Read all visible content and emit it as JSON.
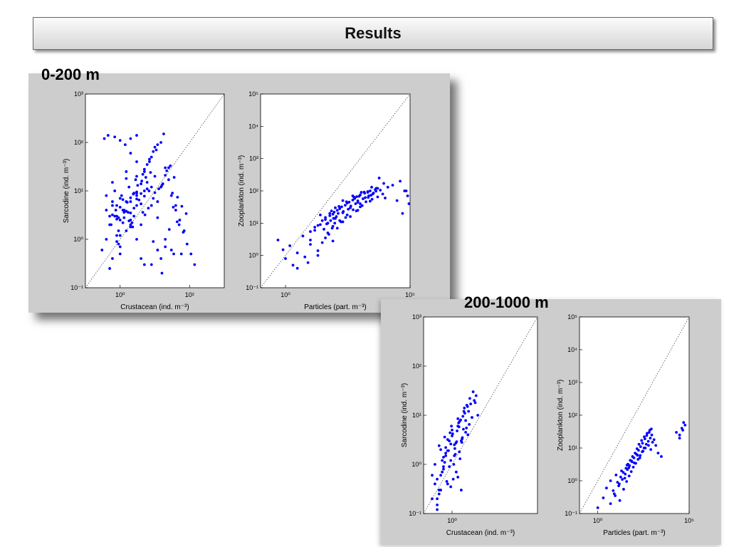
{
  "title": "Results",
  "panels": [
    {
      "label": "0-200 m"
    },
    {
      "label": "200-1000 m"
    }
  ],
  "colors": {
    "points": "#0000ff",
    "reference_line": "#333333"
  },
  "chart_data": [
    {
      "type": "scatter",
      "panel": "0-200 m",
      "xlabel": "Crustacean (ind. m⁻³)",
      "ylabel": "Sarcodine (ind. m⁻³)",
      "xscale": "log",
      "yscale": "log",
      "xlim": [
        0.1,
        1000
      ],
      "ylim": [
        0.1,
        1000
      ],
      "xticks": [
        {
          "v": 1,
          "label": "10⁰"
        },
        {
          "v": 100,
          "label": "10²"
        }
      ],
      "yticks": [
        {
          "v": 0.1,
          "label": "10⁻¹"
        },
        {
          "v": 1,
          "label": "10⁰"
        },
        {
          "v": 10,
          "label": "10¹"
        },
        {
          "v": 100,
          "label": "10²"
        },
        {
          "v": 1000,
          "label": "10³"
        }
      ],
      "reference_line": "y=x",
      "marker_color": "#0000ff",
      "grid": false,
      "x": [
        0.3,
        0.4,
        0.5,
        0.6,
        0.7,
        0.8,
        0.9,
        1.0,
        1.2,
        1.5,
        2.0,
        2.5,
        3.0,
        4.0,
        5.0,
        6.0,
        8.0,
        10,
        15,
        20,
        30,
        40,
        50,
        70,
        0.4,
        0.6,
        0.8,
        1.0,
        1.5,
        2.0,
        3.0,
        5.0,
        8.0,
        12,
        20,
        30,
        0.5,
        0.7,
        1.0,
        1.5,
        2.0,
        3.0,
        5.0,
        8.0,
        15,
        25,
        0.9,
        1.3,
        2.5,
        4.0,
        6.0,
        10,
        18,
        35,
        0.5,
        0.8,
        1.2,
        2.0,
        3.5,
        6.0,
        1.0,
        2.0,
        4.0,
        8.0,
        16,
        3.0,
        5.0,
        7.0,
        9.0,
        12,
        0.6,
        1.1,
        1.8,
        2.8,
        4.5,
        7.0,
        11,
        0.8,
        1.5,
        3.0,
        0.7,
        1.0,
        1.4,
        2.0,
        3.0,
        0.4,
        0.6,
        0.9,
        1.5,
        2.2,
        0.6,
        0.8,
        1.0,
        1.3,
        1.6,
        2.0,
        2.5,
        3.0,
        4.0,
        5.0,
        1.2,
        1.8,
        2.4,
        3.2,
        4.2,
        5.5,
        7.5,
        10,
        13,
        17,
        22,
        28,
        36,
        45,
        60,
        80,
        2.0,
        3.0,
        4.5,
        6.5,
        9.0,
        12,
        16,
        20,
        25,
        32,
        40,
        52,
        66,
        85,
        110,
        140,
        0.35,
        0.45,
        0.55,
        0.75,
        1.0,
        1.3,
        1.7,
        2.3,
        3.0,
        4.0,
        5.2,
        6.8,
        9.0,
        12,
        15,
        20,
        26,
        34,
        44,
        58
      ],
      "y": [
        0.6,
        1.0,
        2.0,
        0.4,
        3.0,
        5.0,
        0.8,
        2.5,
        4.0,
        1.5,
        6.0,
        3.0,
        8.0,
        2.0,
        10,
        15,
        5.0,
        20,
        12,
        30,
        8.0,
        4.0,
        2.0,
        1.5,
        8.0,
        15,
        1.2,
        0.5,
        25,
        60,
        40,
        0.3,
        12,
        6.0,
        1.0,
        0.6,
        3.0,
        10,
        7.0,
        18,
        2.5,
        5.0,
        25,
        50,
        100,
        30,
        1.5,
        4.0,
        9.0,
        14,
        35,
        80,
        150,
        0.5,
        0.25,
        0.9,
        2.2,
        3.5,
        6.5,
        11,
        0.7,
        1.8,
        0.4,
        0.3,
        0.2,
        20,
        28,
        45,
        65,
        90,
        6.0,
        8.0,
        12,
        17,
        22,
        40,
        70,
        3.0,
        6.0,
        9.0,
        130,
        110,
        90,
        120,
        140,
        4.0,
        5.0,
        2.8,
        3.8,
        2.2,
        3.2,
        2.6,
        4.6,
        3.6,
        5.8,
        7.2,
        4.4,
        9.5,
        5.4,
        7.8,
        6.6,
        2.4,
        8.6,
        13,
        16,
        19,
        24,
        9.2,
        11,
        14,
        26,
        33,
        19,
        7.4,
        4.8,
        3.4,
        2.0,
        1.0,
        3.6,
        4.4,
        7.0,
        2.8,
        13,
        21,
        17,
        9.0,
        5.0,
        2.5,
        1.4,
        0.8,
        0.5,
        0.3,
        120,
        140,
        2.0,
        4.0,
        1.2,
        2.8,
        3.6,
        1.8,
        6.8,
        8.8,
        3.2,
        10,
        0.9,
        0.6,
        0.4,
        0.7,
        1.6,
        4.6,
        2.3,
        0.5
      ]
    },
    {
      "type": "scatter",
      "panel": "0-200 m",
      "xlabel": "Particles (part. m⁻³)",
      "ylabel": "Zooplankton (ind. m⁻³)",
      "xscale": "log",
      "yscale": "log",
      "xlim": [
        0.1,
        100000
      ],
      "ylim": [
        0.1,
        100000
      ],
      "xticks": [
        {
          "v": 1,
          "label": "10⁰"
        },
        {
          "v": 100000,
          "label": "10⁵"
        }
      ],
      "yticks": [
        {
          "v": 0.1,
          "label": "10⁻¹"
        },
        {
          "v": 1,
          "label": "10⁰"
        },
        {
          "v": 10,
          "label": "10¹"
        },
        {
          "v": 100,
          "label": "10²"
        },
        {
          "v": 1000,
          "label": "10³"
        },
        {
          "v": 10000,
          "label": "10⁴"
        },
        {
          "v": 100000,
          "label": "10⁵"
        }
      ],
      "reference_line": "y=x",
      "marker_color": "#0000ff",
      "grid": false,
      "x": [
        0.5,
        0.8,
        1.0,
        1.5,
        2.0,
        3.0,
        5.0,
        8.0,
        10,
        15,
        20,
        25,
        30,
        40,
        50,
        60,
        80,
        100,
        150,
        200,
        300,
        500,
        800,
        1000,
        2000,
        3000,
        5000,
        8000,
        10000,
        20000,
        40000,
        60000,
        3.0,
        6.0,
        10,
        20,
        40,
        80,
        120,
        200,
        400,
        700,
        1200,
        2500,
        5000,
        10,
        20,
        40,
        80,
        150,
        300,
        600,
        1000,
        2000,
        4000,
        15,
        30,
        60,
        120,
        250,
        500,
        900,
        1500,
        2500,
        50,
        100,
        200,
        400,
        800,
        1600,
        3200,
        6400,
        12800,
        25,
        70,
        140,
        280,
        560,
        1100,
        2200,
        4400,
        8800,
        90,
        180,
        360,
        720,
        1440,
        2880,
        5760,
        35,
        45,
        55,
        65,
        75,
        85,
        95,
        110,
        130,
        170,
        210,
        260,
        330,
        420,
        520,
        650,
        800,
        1000,
        1300,
        1700,
        2100,
        2700,
        3400,
        4300,
        30000,
        50000,
        70000,
        80000,
        90000
      ],
      "y": [
        3.0,
        1.5,
        0.8,
        2.0,
        0.5,
        1.2,
        4.0,
        0.6,
        3.0,
        6.0,
        1.0,
        9.0,
        2.5,
        15,
        5.0,
        20,
        8.0,
        30,
        12,
        50,
        18,
        70,
        25,
        40,
        90,
        55,
        120,
        80,
        60,
        150,
        200,
        100,
        0.4,
        0.9,
        2.2,
        1.4,
        3.5,
        2.8,
        7.0,
        11,
        16,
        24,
        35,
        48,
        65,
        5.5,
        8.5,
        13,
        19,
        28,
        42,
        58,
        75,
        95,
        110,
        7.5,
        12,
        17,
        25,
        36,
        52,
        68,
        85,
        100,
        10,
        14,
        21,
        30,
        44,
        62,
        80,
        105,
        130,
        18,
        24,
        33,
        46,
        64,
        90,
        70,
        120,
        170,
        22,
        32,
        45,
        66,
        92,
        130,
        250,
        6.5,
        9.5,
        4.5,
        12,
        7.0,
        14,
        10,
        16,
        20,
        11,
        23,
        15,
        27,
        34,
        26,
        40,
        49,
        32,
        57,
        46,
        63,
        73,
        86,
        98,
        50,
        20,
        100,
        70,
        40
      ],
      "extra_note": null
    },
    {
      "type": "scatter",
      "panel": "200-1000 m",
      "xlabel": "Crustacean (ind. m⁻³)",
      "ylabel": "Sarcodine (ind. m⁻³)",
      "xscale": "log",
      "yscale": "log",
      "xlim": [
        0.1,
        1000
      ],
      "ylim": [
        0.1,
        1000
      ],
      "xticks": [
        {
          "v": 1,
          "label": "10⁰"
        }
      ],
      "yticks": [
        {
          "v": 0.1,
          "label": "10⁻¹"
        },
        {
          "v": 1,
          "label": "10⁰"
        },
        {
          "v": 10,
          "label": "10¹"
        },
        {
          "v": 100,
          "label": "10²"
        },
        {
          "v": 1000,
          "label": "10³"
        }
      ],
      "reference_line": "y=x",
      "marker_color": "#0000ff",
      "grid": false,
      "x": [
        0.2,
        0.25,
        0.3,
        0.35,
        0.4,
        0.5,
        0.6,
        0.7,
        0.8,
        0.9,
        1.0,
        1.2,
        1.4,
        1.6,
        1.8,
        2.0,
        2.3,
        2.6,
        3.0,
        3.5,
        4.0,
        5.0,
        6.0,
        7.0,
        8.0,
        0.3,
        0.4,
        0.5,
        0.6,
        0.8,
        1.0,
        1.3,
        1.7,
        2.2,
        2.8,
        3.6,
        4.5,
        0.25,
        0.35,
        0.45,
        0.55,
        0.7,
        0.9,
        1.1,
        1.5,
        1.9,
        2.4,
        3.2,
        0.3,
        0.5,
        0.7,
        0.95,
        1.25,
        1.6,
        2.1,
        2.7,
        0.4,
        0.6,
        0.85,
        1.15,
        1.45,
        1.85,
        2.5,
        3.3,
        4.2,
        5.5,
        0.2,
        0.3,
        0.45,
        0.65,
        0.9,
        1.2,
        1.6,
        2.1,
        0.35,
        0.55,
        0.75,
        1.05,
        1.35,
        1.75,
        2.25,
        3.0,
        3.8,
        5.0,
        6.5
      ],
      "y": [
        0.2,
        1.0,
        0.5,
        0.3,
        2.0,
        0.8,
        1.5,
        0.4,
        3.0,
        1.2,
        5.0,
        2.5,
        0.7,
        6.0,
        1.8,
        8.0,
        3.5,
        12,
        4.5,
        15,
        6.5,
        9.0,
        20,
        25,
        10,
        0.15,
        0.6,
        1.4,
        2.2,
        0.9,
        3.8,
        1.6,
        7.0,
        2.8,
        11,
        4.0,
        17,
        0.4,
        0.25,
        0.7,
        1.1,
        1.9,
        2.6,
        0.5,
        4.8,
        1.3,
        9.5,
        5.5,
        0.12,
        0.9,
        3.2,
        6.0,
        2.1,
        8.5,
        3.0,
        14,
        0.3,
        1.7,
        4.4,
        1.0,
        2.9,
        7.5,
        5.2,
        16,
        22,
        30,
        0.6,
        0.2,
        1.2,
        0.45,
        0.35,
        1.5,
        0.55,
        0.3,
        2.4,
        3.6,
        1.9,
        4.2,
        2.7,
        5.8,
        3.3,
        7.8,
        12,
        9.0,
        18
      ]
    },
    {
      "type": "scatter",
      "panel": "200-1000 m",
      "xlabel": "Particles (part. m⁻³)",
      "ylabel": "Zooplankton (ind. m⁻³)",
      "xscale": "log",
      "yscale": "log",
      "xlim": [
        0.1,
        100000
      ],
      "ylim": [
        0.1,
        100000
      ],
      "xticks": [
        {
          "v": 1,
          "label": "10⁰"
        },
        {
          "v": 100000,
          "label": "10⁵"
        }
      ],
      "yticks": [
        {
          "v": 0.1,
          "label": "10⁻¹"
        },
        {
          "v": 1,
          "label": "10⁰"
        },
        {
          "v": 10,
          "label": "10¹"
        },
        {
          "v": 100,
          "label": "10²"
        },
        {
          "v": 1000,
          "label": "10³"
        },
        {
          "v": 10000,
          "label": "10⁴"
        },
        {
          "v": 100000,
          "label": "10⁵"
        }
      ],
      "reference_line": "y=x",
      "marker_color": "#0000ff",
      "grid": false,
      "x": [
        1.0,
        2.0,
        3.0,
        5.0,
        8.0,
        10,
        15,
        20,
        30,
        40,
        50,
        70,
        100,
        150,
        200,
        300,
        400,
        600,
        800,
        1000,
        2000,
        3000,
        5.0,
        7.0,
        12,
        18,
        25,
        35,
        45,
        60,
        80,
        110,
        140,
        180,
        250,
        350,
        500,
        700,
        900,
        1200,
        1500,
        9.0,
        14,
        22,
        32,
        42,
        55,
        75,
        95,
        130,
        170,
        220,
        280,
        380,
        480,
        650,
        850,
        16,
        26,
        38,
        52,
        68,
        88,
        120,
        160,
        210,
        270,
        340,
        450,
        580,
        750,
        20000,
        30000,
        40000,
        50000,
        60000,
        30000,
        45000
      ],
      "y": [
        0.15,
        0.3,
        0.6,
        1.0,
        0.4,
        1.5,
        0.8,
        2.0,
        1.2,
        3.0,
        2.5,
        4.0,
        3.5,
        6.0,
        5.0,
        8.0,
        10,
        12,
        9.0,
        15,
        7.0,
        5.5,
        0.2,
        0.5,
        0.9,
        1.3,
        1.8,
        2.4,
        3.2,
        4.2,
        5.5,
        7.0,
        9.5,
        13,
        17,
        22,
        28,
        35,
        25,
        18,
        12,
        0.35,
        0.7,
        1.1,
        1.6,
        2.2,
        2.9,
        3.8,
        5.0,
        6.5,
        8.5,
        11,
        14,
        19,
        24,
        30,
        38,
        0.25,
        0.55,
        0.95,
        1.4,
        1.9,
        2.6,
        3.4,
        4.5,
        5.9,
        7.7,
        10,
        13,
        16,
        20,
        30,
        20,
        40,
        60,
        50,
        25,
        35
      ]
    }
  ]
}
